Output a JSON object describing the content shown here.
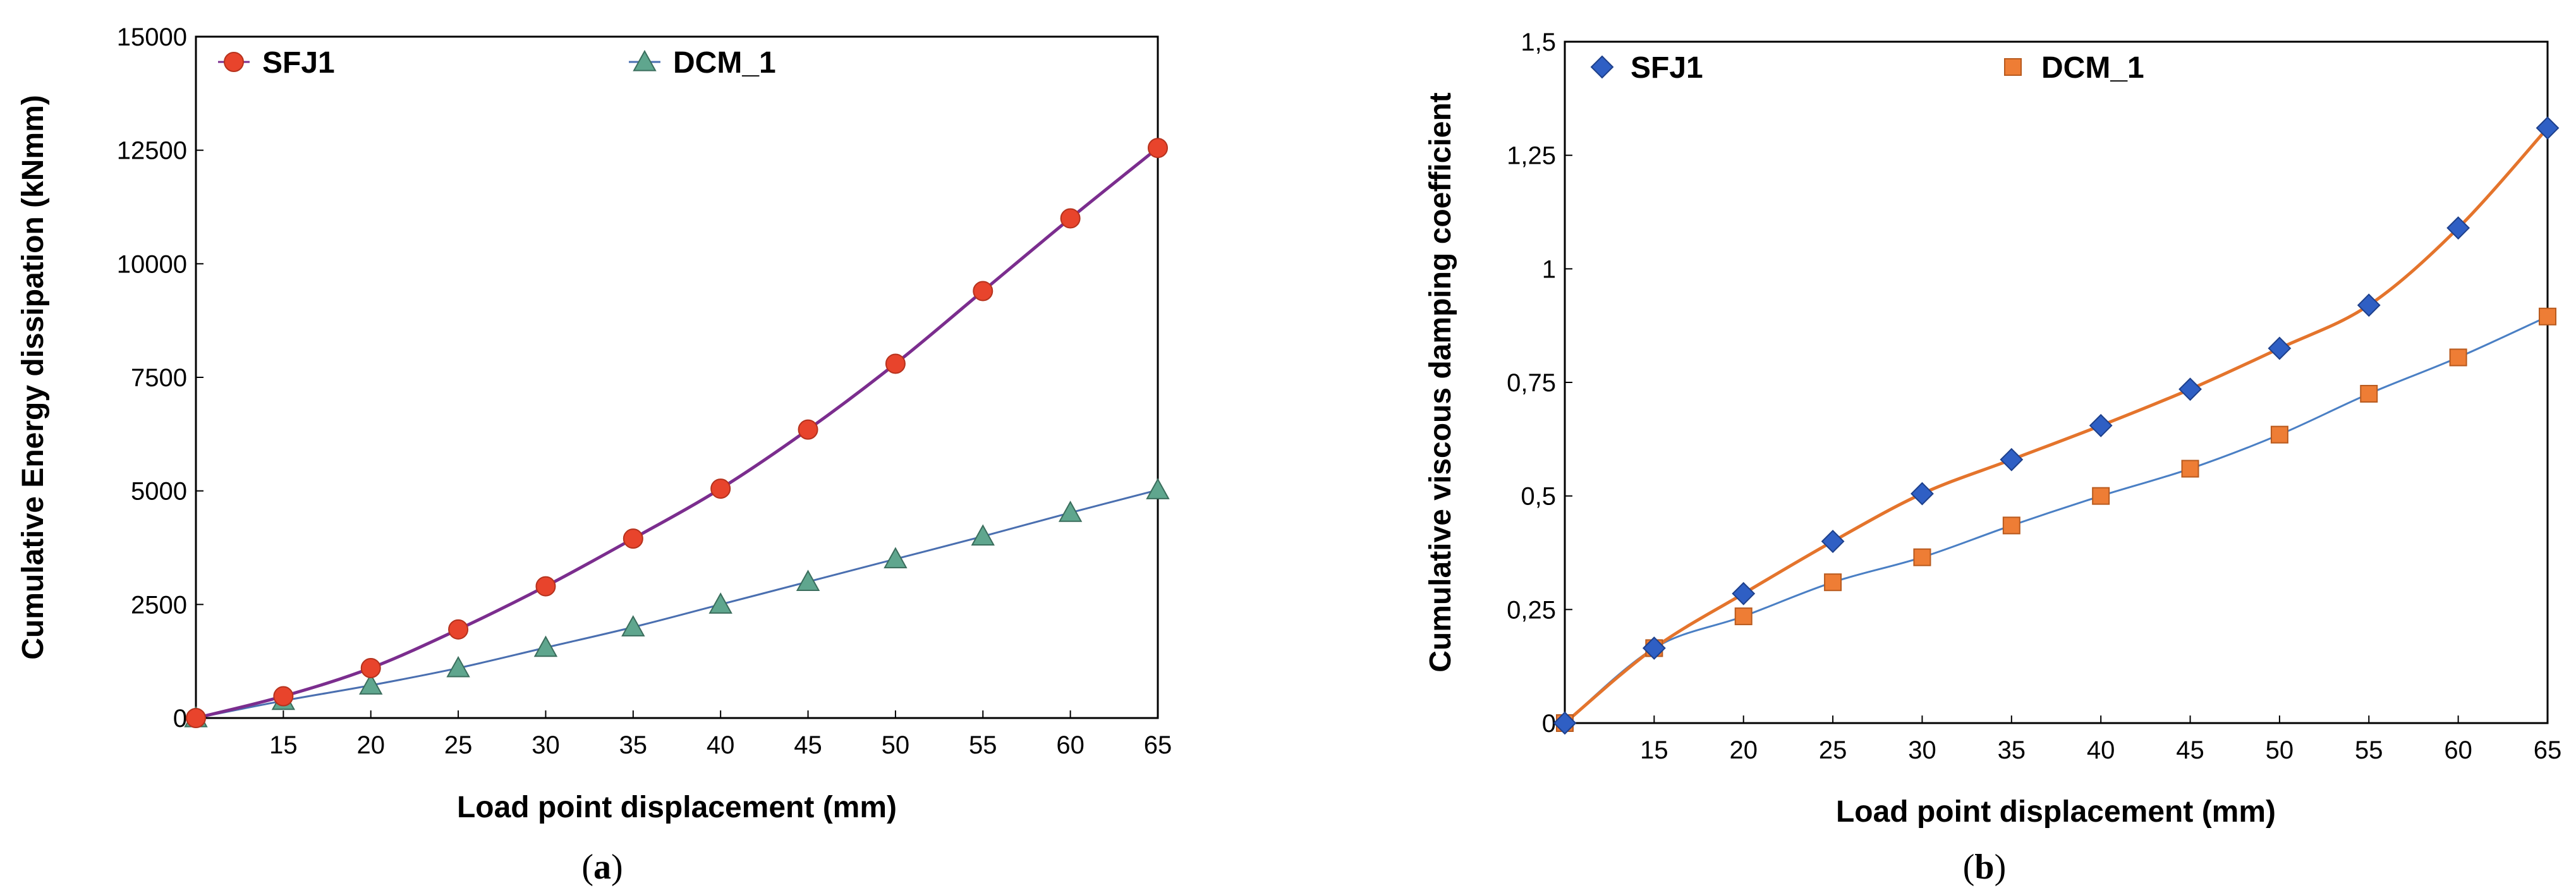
{
  "chart_data": [
    {
      "type": "line",
      "caption": "a",
      "xlabel": "Load point displacement (mm)",
      "ylabel": "Cumulative Energy dissipation (kNmm)",
      "x": [
        10,
        15,
        20,
        25,
        30,
        35,
        40,
        45,
        50,
        55,
        60,
        65
      ],
      "xlim": [
        10,
        65
      ],
      "xticks": [
        15,
        20,
        25,
        30,
        35,
        40,
        45,
        50,
        55,
        60,
        65
      ],
      "xtick_labels": [
        "15",
        "20",
        "25",
        "30",
        "35",
        "40",
        "45",
        "50",
        "55",
        "60",
        "65"
      ],
      "ylim": [
        0,
        15000
      ],
      "yticks": [
        0,
        2500,
        5000,
        7500,
        10000,
        12500,
        15000
      ],
      "ytick_labels": [
        "0",
        "2500",
        "5000",
        "7500",
        "10000",
        "12500",
        "15000"
      ],
      "grid": false,
      "legend_position": "top",
      "series": [
        {
          "name": "SFJ1",
          "values": [
            0,
            480,
            1100,
            1950,
            2900,
            3950,
            5050,
            6350,
            7800,
            9400,
            11000,
            12550
          ],
          "line_color": "#7b2d8e",
          "marker": "circle",
          "marker_color": "#e8442c",
          "marker_edge": "#b5321d"
        },
        {
          "name": "DCM_1",
          "values": [
            0,
            380,
            720,
            1100,
            1550,
            2000,
            2500,
            3000,
            3500,
            4000,
            4520,
            5020
          ],
          "line_color": "#4a6fb0",
          "marker": "triangle",
          "marker_color": "#5fa68e",
          "marker_edge": "#3a6d5c"
        }
      ]
    },
    {
      "type": "line",
      "caption": "b",
      "xlabel": "Load point displacement (mm)",
      "ylabel": "Cumulative viscous damping coefficient",
      "x": [
        10,
        15,
        20,
        25,
        30,
        35,
        40,
        45,
        50,
        55,
        60,
        65
      ],
      "xlim": [
        10,
        65
      ],
      "xticks": [
        15,
        20,
        25,
        30,
        35,
        40,
        45,
        50,
        55,
        60,
        65
      ],
      "xtick_labels": [
        "15",
        "20",
        "25",
        "30",
        "35",
        "40",
        "45",
        "50",
        "55",
        "60",
        "65"
      ],
      "ylim": [
        0,
        1.5
      ],
      "yticks": [
        0,
        0.25,
        0.5,
        0.75,
        1,
        1.25,
        1.5
      ],
      "ytick_labels": [
        "0",
        "0,25",
        "0,5",
        "0,75",
        "1",
        "1,25",
        "1,5"
      ],
      "grid": false,
      "legend_position": "top",
      "series": [
        {
          "name": "SFJ1",
          "values": [
            0,
            0.165,
            0.285,
            0.4,
            0.505,
            0.58,
            0.655,
            0.735,
            0.825,
            0.92,
            1.09,
            1.31
          ],
          "line_color": "#e4742c",
          "marker": "diamond",
          "marker_color": "#2f5fc4",
          "marker_edge": "#1d3f8a"
        },
        {
          "name": "DCM_1",
          "values": [
            0,
            0.165,
            0.235,
            0.31,
            0.365,
            0.435,
            0.5,
            0.56,
            0.635,
            0.725,
            0.805,
            0.895
          ],
          "line_color": "#4a7fc4",
          "marker": "square",
          "marker_color": "#ee7d35",
          "marker_edge": "#b85a1e"
        }
      ]
    }
  ]
}
